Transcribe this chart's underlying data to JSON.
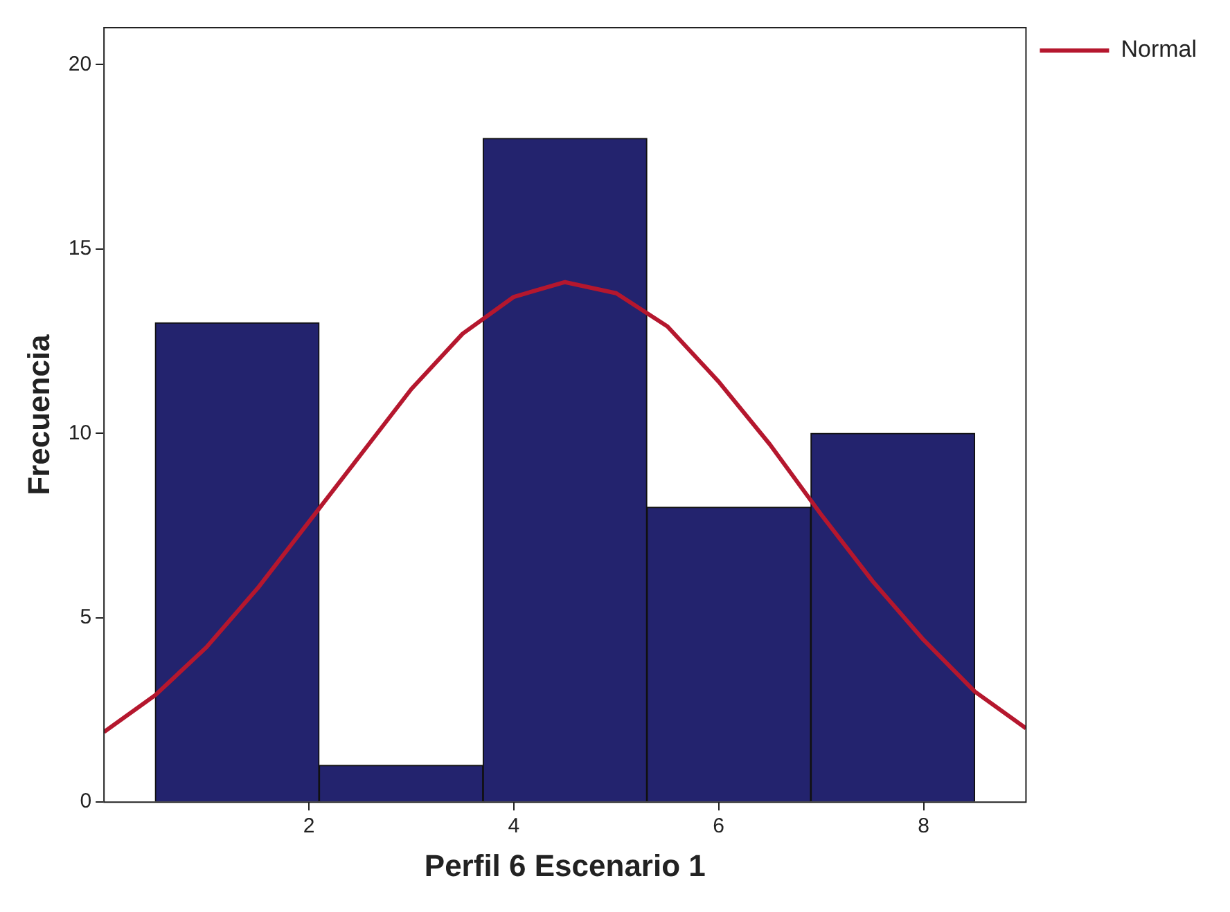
{
  "chart_data": {
    "type": "histogram",
    "xlabel": "Perfil 6 Escenario 1",
    "ylabel": "Frecuencia",
    "bins": [
      0.5,
      2.1,
      3.7,
      5.3,
      6.9,
      8.5
    ],
    "values": [
      13,
      1,
      18,
      8,
      10
    ],
    "color": "#23236e",
    "series": [
      {
        "type": "line",
        "name": "Normal",
        "color": "#b5172e",
        "x": [
          0,
          0.5,
          1,
          1.5,
          2,
          2.5,
          3,
          3.5,
          4,
          4.5,
          5,
          5.5,
          6,
          6.5,
          7,
          7.5,
          8,
          8.5,
          9
        ],
        "values": [
          1.9,
          2.9,
          4.2,
          5.8,
          7.6,
          9.4,
          11.2,
          12.7,
          13.7,
          14.1,
          13.8,
          12.9,
          11.4,
          9.7,
          7.8,
          6.0,
          4.4,
          3.0,
          2.0
        ]
      }
    ],
    "xlim": [
      0,
      9
    ],
    "ylim": [
      0,
      21
    ],
    "xticks": [
      2,
      4,
      6,
      8
    ],
    "yticks": [
      0,
      5,
      10,
      15,
      20
    ],
    "grid": false,
    "legend": "top right",
    "marker": "none",
    "line_style": "solid"
  }
}
